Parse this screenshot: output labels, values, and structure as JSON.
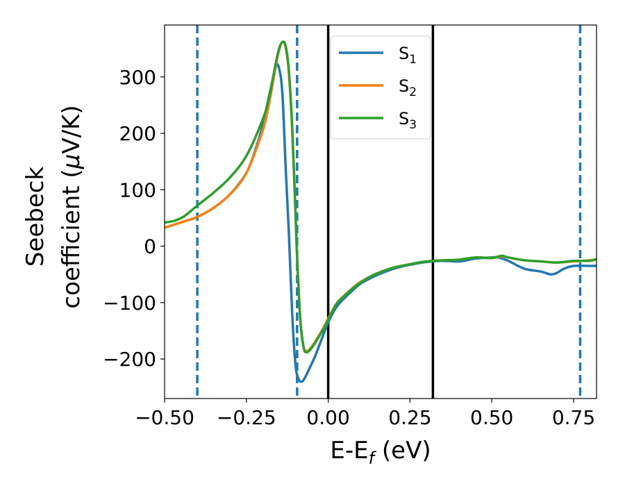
{
  "chart_data": {
    "type": "line",
    "xlabel": {
      "main": "E-E",
      "sub": "f",
      "unit": " (eV)"
    },
    "ylabel": {
      "line1": "Seebeck",
      "line2": "coefficient  (",
      "mu": "μ",
      "line2_end": "V/K)"
    },
    "xlim": [
      -0.5,
      0.82
    ],
    "ylim": [
      -270,
      392
    ],
    "xticks": [
      -0.5,
      -0.25,
      0.0,
      0.25,
      0.5,
      0.75
    ],
    "xtick_labels": [
      "−0.50",
      "−0.25",
      "0.00",
      "0.25",
      "0.50",
      "0.75"
    ],
    "yticks": [
      -200,
      -100,
      0,
      100,
      200,
      300
    ],
    "ytick_labels": [
      "−200",
      "−100",
      "0",
      "100",
      "200",
      "300"
    ],
    "grid": false,
    "legend_placement": "upper-center",
    "vlines": [
      {
        "x": -0.4,
        "style": "dashed",
        "color": "#1f77b4"
      },
      {
        "x": -0.095,
        "style": "dashed",
        "color": "#1f77b4"
      },
      {
        "x": 0.0,
        "style": "solid",
        "color": "#000000"
      },
      {
        "x": 0.32,
        "style": "solid",
        "color": "#000000"
      },
      {
        "x": 0.77,
        "style": "dashed",
        "color": "#1f77b4"
      }
    ],
    "series": [
      {
        "name": "S",
        "sub": "1",
        "color": "#1f77b4",
        "points": [
          [
            -0.5,
            33
          ],
          [
            -0.45,
            42
          ],
          [
            -0.4,
            52
          ],
          [
            -0.35,
            68
          ],
          [
            -0.3,
            92
          ],
          [
            -0.25,
            130
          ],
          [
            -0.22,
            175
          ],
          [
            -0.2,
            215
          ],
          [
            -0.18,
            268
          ],
          [
            -0.16,
            318
          ],
          [
            -0.15,
            315
          ],
          [
            -0.14,
            270
          ],
          [
            -0.13,
            140
          ],
          [
            -0.12,
            20
          ],
          [
            -0.11,
            -120
          ],
          [
            -0.1,
            -210
          ],
          [
            -0.09,
            -236
          ],
          [
            -0.08,
            -240
          ],
          [
            -0.07,
            -232
          ],
          [
            -0.06,
            -220
          ],
          [
            -0.04,
            -195
          ],
          [
            -0.02,
            -165
          ],
          [
            0.0,
            -135
          ],
          [
            0.025,
            -108
          ],
          [
            0.05,
            -92
          ],
          [
            0.075,
            -78
          ],
          [
            0.1,
            -66
          ],
          [
            0.125,
            -58
          ],
          [
            0.15,
            -51
          ],
          [
            0.2,
            -40
          ],
          [
            0.25,
            -33
          ],
          [
            0.3,
            -28
          ],
          [
            0.35,
            -26
          ],
          [
            0.4,
            -27
          ],
          [
            0.45,
            -22
          ],
          [
            0.5,
            -20
          ],
          [
            0.52,
            -20
          ],
          [
            0.55,
            -26
          ],
          [
            0.6,
            -40
          ],
          [
            0.65,
            -45
          ],
          [
            0.68,
            -50
          ],
          [
            0.7,
            -47
          ],
          [
            0.72,
            -40
          ],
          [
            0.75,
            -35
          ],
          [
            0.8,
            -35
          ],
          [
            0.82,
            -35
          ]
        ]
      },
      {
        "name": "S",
        "sub": "2",
        "color": "#ff7f0e",
        "points": [
          [
            -0.5,
            33
          ],
          [
            -0.45,
            42
          ],
          [
            -0.4,
            52
          ],
          [
            -0.35,
            68
          ],
          [
            -0.3,
            92
          ],
          [
            -0.25,
            130
          ],
          [
            -0.2,
            205
          ],
          [
            -0.18,
            255
          ],
          [
            -0.16,
            320
          ],
          [
            -0.15,
            348
          ],
          [
            -0.14,
            362
          ],
          [
            -0.13,
            352
          ],
          [
            -0.12,
            305
          ],
          [
            -0.11,
            205
          ],
          [
            -0.1,
            60
          ],
          [
            -0.095,
            -20
          ],
          [
            -0.085,
            -130
          ],
          [
            -0.075,
            -178
          ],
          [
            -0.065,
            -186
          ],
          [
            -0.05,
            -178
          ],
          [
            -0.03,
            -160
          ],
          [
            -0.01,
            -140
          ],
          [
            0.0,
            -128
          ],
          [
            0.025,
            -102
          ],
          [
            0.05,
            -87
          ],
          [
            0.075,
            -74
          ],
          [
            0.1,
            -63
          ],
          [
            0.125,
            -55
          ],
          [
            0.15,
            -48
          ],
          [
            0.2,
            -38
          ],
          [
            0.25,
            -32
          ],
          [
            0.3,
            -27
          ],
          [
            0.35,
            -25
          ],
          [
            0.4,
            -24
          ],
          [
            0.45,
            -20
          ],
          [
            0.5,
            -21
          ],
          [
            0.53,
            -18
          ],
          [
            0.55,
            -20
          ],
          [
            0.6,
            -25
          ],
          [
            0.65,
            -27
          ],
          [
            0.7,
            -29
          ],
          [
            0.75,
            -27
          ],
          [
            0.8,
            -25
          ],
          [
            0.82,
            -23
          ]
        ]
      },
      {
        "name": "S",
        "sub": "3",
        "color": "#2ca02c",
        "points": [
          [
            -0.5,
            42
          ],
          [
            -0.47,
            45
          ],
          [
            -0.44,
            53
          ],
          [
            -0.4,
            72
          ],
          [
            -0.35,
            95
          ],
          [
            -0.3,
            122
          ],
          [
            -0.25,
            160
          ],
          [
            -0.2,
            225
          ],
          [
            -0.18,
            265
          ],
          [
            -0.16,
            325
          ],
          [
            -0.15,
            350
          ],
          [
            -0.14,
            362
          ],
          [
            -0.13,
            355
          ],
          [
            -0.12,
            310
          ],
          [
            -0.11,
            210
          ],
          [
            -0.1,
            60
          ],
          [
            -0.095,
            -20
          ],
          [
            -0.085,
            -132
          ],
          [
            -0.075,
            -180
          ],
          [
            -0.065,
            -188
          ],
          [
            -0.05,
            -180
          ],
          [
            -0.03,
            -162
          ],
          [
            -0.01,
            -142
          ],
          [
            0.0,
            -130
          ],
          [
            0.025,
            -103
          ],
          [
            0.05,
            -88
          ],
          [
            0.075,
            -75
          ],
          [
            0.1,
            -64
          ],
          [
            0.125,
            -55
          ],
          [
            0.15,
            -48
          ],
          [
            0.2,
            -38
          ],
          [
            0.25,
            -32
          ],
          [
            0.3,
            -27
          ],
          [
            0.35,
            -25
          ],
          [
            0.4,
            -24
          ],
          [
            0.45,
            -20
          ],
          [
            0.5,
            -21
          ],
          [
            0.53,
            -17
          ],
          [
            0.55,
            -20
          ],
          [
            0.6,
            -25
          ],
          [
            0.65,
            -27
          ],
          [
            0.7,
            -29
          ],
          [
            0.75,
            -26
          ],
          [
            0.8,
            -26
          ],
          [
            0.82,
            -23
          ]
        ]
      }
    ]
  }
}
